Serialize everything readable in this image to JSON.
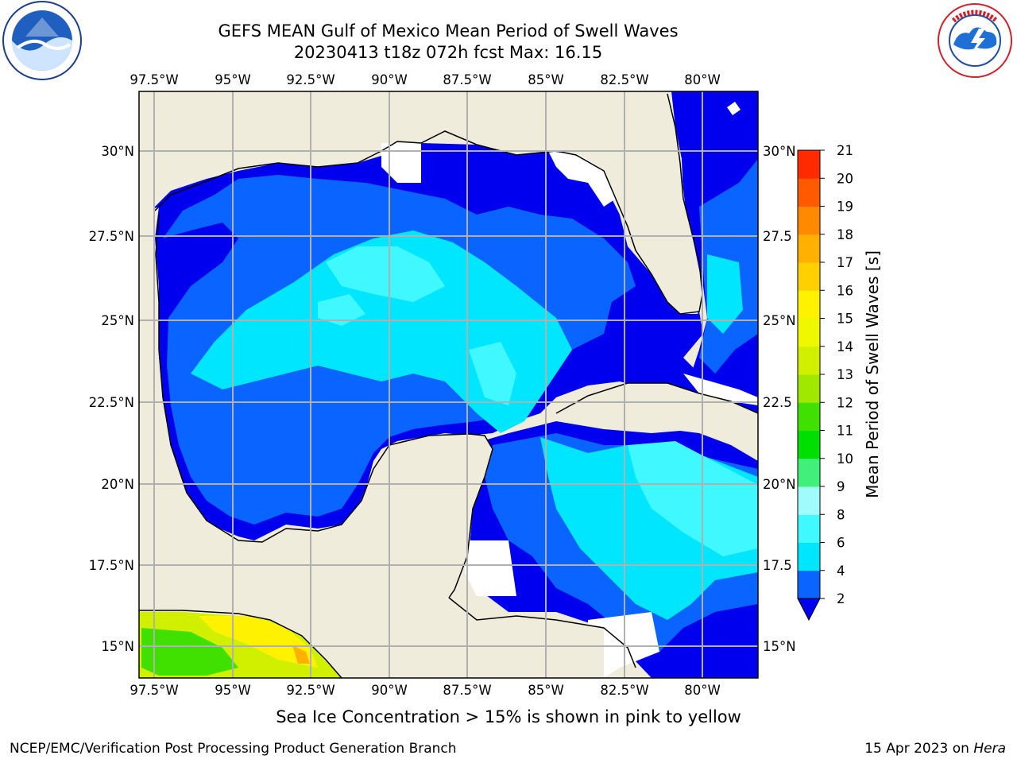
{
  "header": {
    "title_line1": "GEFS MEAN Gulf of Mexico Mean Period of Swell Waves",
    "title_line2": "20230413 t18z 072h fcst   Max: 16.15"
  },
  "logos": {
    "left": "noaa-logo",
    "right": "national-weather-service-logo"
  },
  "map": {
    "lon_labels": [
      "97.5°W",
      "95°W",
      "92.5°W",
      "90°W",
      "87.5°W",
      "85°W",
      "82.5°W",
      "80°W"
    ],
    "lat_labels_left": [
      "30°N",
      "27.5°N",
      "25°N",
      "22.5°N",
      "20°N",
      "17.5°N",
      "15°N"
    ],
    "lat_labels_right": [
      "30°N",
      "27.5",
      "25°N",
      "22.5",
      "20°N",
      "17.5",
      "15°N"
    ],
    "extent": {
      "lon_min": -98,
      "lon_max": -79,
      "lat_min": 14,
      "lat_max": 32
    },
    "colors": {
      "land": "#efecdc",
      "gridline": "#b0b0b0",
      "no_data": "#ffffff"
    }
  },
  "colorbar": {
    "label": "Mean Period of Swell Waves [s]",
    "tick_labels": [
      "2",
      "4",
      "6",
      "8",
      "9",
      "10",
      "11",
      "12",
      "13",
      "14",
      "15",
      "16",
      "17",
      "18",
      "19",
      "20",
      "21"
    ],
    "colors": [
      "#0a64ff",
      "#00e6ff",
      "#40f8ff",
      "#a0fcfc",
      "#40f07a",
      "#00e000",
      "#40e000",
      "#a0e800",
      "#d0f000",
      "#f0f800",
      "#fff200",
      "#ffd000",
      "#ffb000",
      "#ff8a00",
      "#ff5a00",
      "#ff2a00",
      "#ff0000"
    ],
    "under_color": "#0000ee"
  },
  "notes": {
    "sea_ice": "Sea Ice Concentration > 15% is shown in pink to yellow"
  },
  "footer": {
    "left": "NCEP/EMC/Verification Post Processing Product Generation Branch",
    "right_prefix": "15 Apr 2023 on ",
    "right_host": "Hera"
  }
}
